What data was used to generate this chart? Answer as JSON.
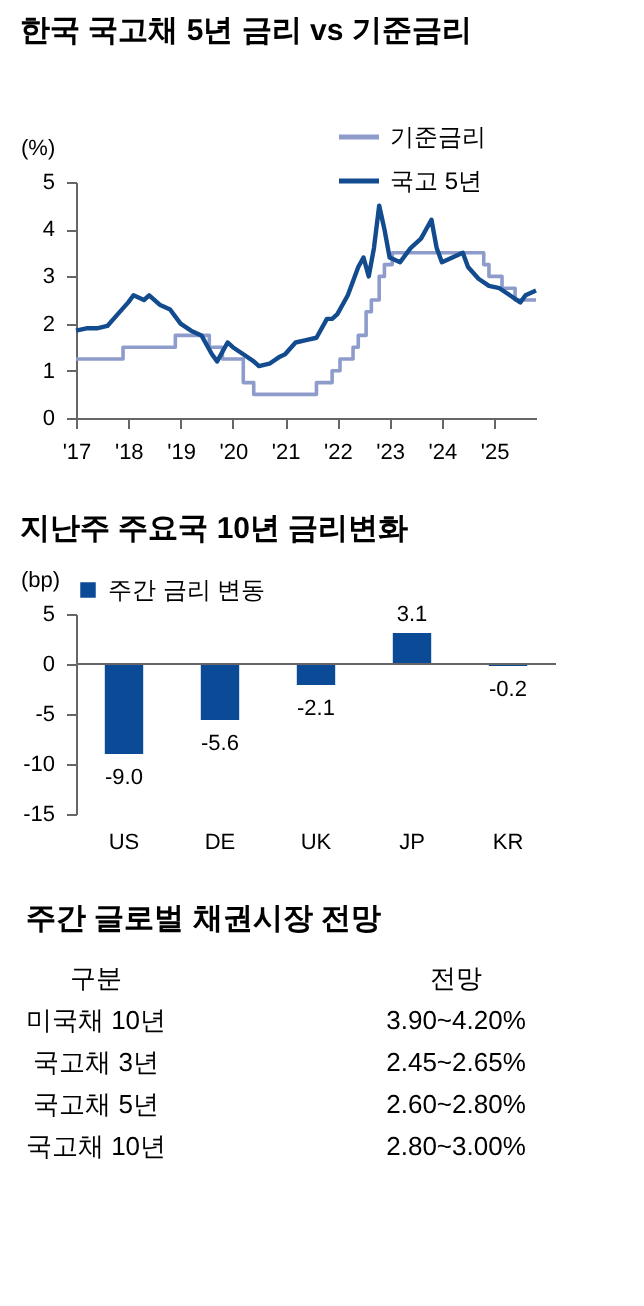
{
  "chart_data": [
    {
      "type": "line",
      "title": "한국 국고채 5년 금리 vs 기준금리",
      "ylabel": "(%)",
      "legend": "top right",
      "xlim": [
        2017,
        2025.8
      ],
      "xticks": [
        {
          "value": 2017,
          "label": "'17"
        },
        {
          "value": 2018,
          "label": "'18"
        },
        {
          "value": 2019,
          "label": "'19"
        },
        {
          "value": 2020,
          "label": "'20"
        },
        {
          "value": 2021,
          "label": "'21"
        },
        {
          "value": 2022,
          "label": "'22"
        },
        {
          "value": 2023,
          "label": "'23"
        },
        {
          "value": 2024,
          "label": "'24"
        },
        {
          "value": 2025,
          "label": "'25"
        }
      ],
      "ylim": [
        0,
        5
      ],
      "yticks": [
        0,
        1,
        2,
        3,
        4,
        5
      ],
      "series": [
        {
          "name": "기준금리",
          "type": "step",
          "color": "#8e9ccb",
          "x": [
            2017.0,
            2017.9,
            2018.9,
            2019.55,
            2019.8,
            2020.2,
            2020.4,
            2021.6,
            2021.9,
            2022.05,
            2022.3,
            2022.4,
            2022.55,
            2022.65,
            2022.8,
            2022.9,
            2023.05,
            2024.8,
            2024.9,
            2025.15,
            2025.4,
            2025.8
          ],
          "values": [
            1.25,
            1.5,
            1.75,
            1.5,
            1.25,
            0.75,
            0.5,
            0.75,
            1.0,
            1.25,
            1.5,
            1.75,
            2.25,
            2.5,
            3.0,
            3.25,
            3.5,
            3.25,
            3.0,
            2.75,
            2.5,
            2.5
          ]
        },
        {
          "name": "국고 5년",
          "type": "line",
          "color": "#124b8e",
          "x": [
            2017.0,
            2017.2,
            2017.4,
            2017.6,
            2017.8,
            2018.0,
            2018.1,
            2018.3,
            2018.4,
            2018.6,
            2018.8,
            2019.0,
            2019.2,
            2019.4,
            2019.6,
            2019.7,
            2019.9,
            2020.0,
            2020.2,
            2020.4,
            2020.5,
            2020.7,
            2020.9,
            2021.0,
            2021.2,
            2021.4,
            2021.6,
            2021.8,
            2021.9,
            2022.0,
            2022.2,
            2022.4,
            2022.5,
            2022.6,
            2022.7,
            2022.8,
            2022.9,
            2023.0,
            2023.2,
            2023.4,
            2023.6,
            2023.8,
            2023.9,
            2024.0,
            2024.2,
            2024.4,
            2024.5,
            2024.7,
            2024.9,
            2025.1,
            2025.3,
            2025.5,
            2025.6,
            2025.8
          ],
          "values": [
            1.85,
            1.9,
            1.9,
            1.95,
            2.2,
            2.45,
            2.6,
            2.5,
            2.6,
            2.4,
            2.3,
            2.0,
            1.85,
            1.75,
            1.35,
            1.2,
            1.6,
            1.5,
            1.35,
            1.2,
            1.1,
            1.15,
            1.3,
            1.35,
            1.6,
            1.65,
            1.7,
            2.1,
            2.1,
            2.2,
            2.6,
            3.2,
            3.4,
            3.0,
            3.6,
            4.5,
            4.0,
            3.4,
            3.3,
            3.6,
            3.8,
            4.2,
            3.6,
            3.3,
            3.4,
            3.5,
            3.2,
            2.95,
            2.8,
            2.75,
            2.6,
            2.45,
            2.6,
            2.7
          ]
        }
      ]
    },
    {
      "type": "bar",
      "title": "지난주 주요국 10년 금리변화",
      "ylabel": "(bp)",
      "legend": "top",
      "categories": [
        "US",
        "DE",
        "UK",
        "JP",
        "KR"
      ],
      "ylim": [
        -15,
        5
      ],
      "yticks": [
        -15,
        -10,
        -5,
        0,
        5
      ],
      "series": [
        {
          "name": "주간 금리 변동",
          "color": "#0b4a96",
          "values": [
            -9.0,
            -5.6,
            -2.1,
            3.1,
            -0.2
          ],
          "value_labels": [
            "-9.0",
            "-5.6",
            "-2.1",
            "3.1",
            "-0.2"
          ]
        }
      ]
    },
    {
      "type": "other",
      "title": "주간 글로벌 채권시장 전망",
      "annotations": [
        "구분",
        "전망",
        "미국채 10년",
        "3.90~4.20%",
        "국고채 3년",
        "2.45~2.65%",
        "국고채 5년",
        "2.60~2.80%",
        "국고채 10년",
        "2.80~3.00%"
      ]
    }
  ]
}
